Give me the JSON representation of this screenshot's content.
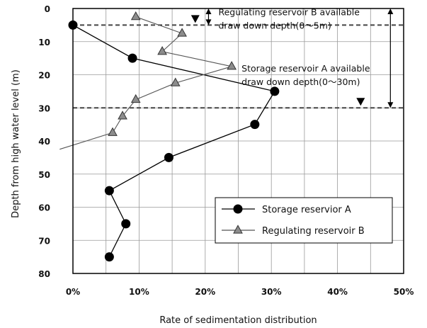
{
  "chart_data": {
    "type": "line",
    "xlabel": "Rate of sedimentation distribution",
    "ylabel": "Depth from high water level (m)",
    "xlim": [
      0,
      50
    ],
    "ylim": [
      0,
      80
    ],
    "y_inverted": true,
    "grid": true,
    "legend_position": "bottom-right",
    "x_ticks": [
      "0%",
      "10%",
      "20%",
      "30%",
      "40%",
      "50%"
    ],
    "y_ticks": [
      "0",
      "10",
      "20",
      "30",
      "40",
      "50",
      "60",
      "70",
      "80"
    ],
    "series": [
      {
        "name": "Storage reservior A",
        "marker": "circle",
        "color": "#000000",
        "points": [
          {
            "x": 0,
            "y": 5
          },
          {
            "x": 9,
            "y": 15
          },
          {
            "x": 30.5,
            "y": 25
          },
          {
            "x": 27.5,
            "y": 35
          },
          {
            "x": 14.5,
            "y": 45
          },
          {
            "x": 5.5,
            "y": 55
          },
          {
            "x": 8,
            "y": 65
          },
          {
            "x": 5.5,
            "y": 75
          }
        ]
      },
      {
        "name": "Regulating reservoir B",
        "marker": "triangle",
        "color": "#808080",
        "points": [
          {
            "x": 9.5,
            "y": 2.5
          },
          {
            "x": 16.5,
            "y": 7.5
          },
          {
            "x": 13.5,
            "y": 13
          },
          {
            "x": 24,
            "y": 17.5
          },
          {
            "x": 15.5,
            "y": 22.5
          },
          {
            "x": 9.5,
            "y": 27.5
          },
          {
            "x": 7.5,
            "y": 32.5
          },
          {
            "x": 6,
            "y": 37.5
          },
          {
            "x": -2,
            "y": 42.5
          }
        ]
      }
    ],
    "reference_lines": [
      {
        "y": 5,
        "style": "dashed"
      },
      {
        "y": 30,
        "style": "dashed"
      }
    ],
    "annotations": [
      {
        "text_lines": [
          "Regulating reservoir B available",
          "draw down depth(0～5m)"
        ],
        "x": 22,
        "y": 2
      },
      {
        "text_lines": [
          "Storage reservoir A available",
          "draw down depth(0～30m)"
        ],
        "x": 25.5,
        "y": 19
      }
    ],
    "range_arrows": [
      {
        "x": 20.5,
        "y_from": 0,
        "y_to": 5
      },
      {
        "x": 48,
        "y_from": 0,
        "y_to": 30
      }
    ],
    "water_level_markers": [
      {
        "x": 18.5,
        "y": 5
      },
      {
        "x": 43.5,
        "y": 30
      }
    ]
  }
}
